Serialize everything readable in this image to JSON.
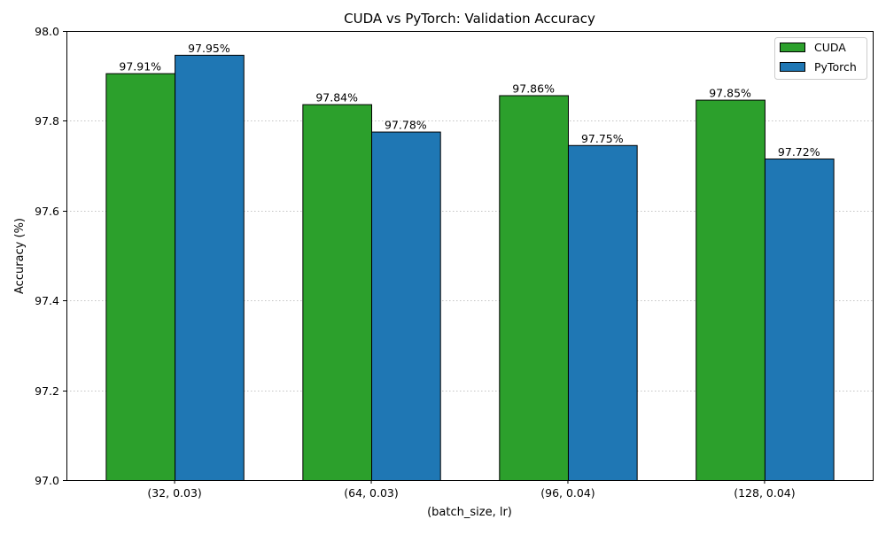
{
  "chart_data": {
    "type": "bar",
    "title": "CUDA vs PyTorch: Validation Accuracy",
    "xlabel": "(batch_size, lr)",
    "ylabel": "Accuracy (%)",
    "categories": [
      "(32, 0.03)",
      "(64, 0.03)",
      "(96, 0.04)",
      "(128, 0.04)"
    ],
    "series": [
      {
        "name": "CUDA",
        "color": "#2ca02c",
        "values": [
          97.906,
          97.837,
          97.857,
          97.847
        ],
        "labels": [
          "97.91%",
          "97.84%",
          "97.86%",
          "97.85%"
        ]
      },
      {
        "name": "PyTorch",
        "color": "#1f77b4",
        "values": [
          97.947,
          97.776,
          97.746,
          97.716
        ],
        "labels": [
          "97.95%",
          "97.78%",
          "97.75%",
          "97.72%"
        ]
      }
    ],
    "ylim": [
      97.0,
      98.0
    ],
    "yticks": [
      97.0,
      97.2,
      97.4,
      97.6,
      97.8,
      98.0
    ],
    "ytick_labels": [
      "97.0",
      "97.2",
      "97.4",
      "97.6",
      "97.8",
      "98.0"
    ],
    "grid": "y",
    "legend_position": "top-right"
  }
}
